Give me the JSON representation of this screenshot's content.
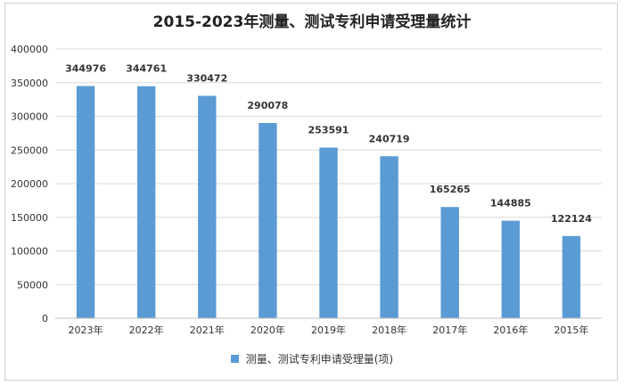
{
  "chart_data": {
    "type": "bar",
    "title": "2015-2023年测量、测试专利申请受理量统计",
    "categories": [
      "2023年",
      "2022年",
      "2021年",
      "2020年",
      "2019年",
      "2018年",
      "2017年",
      "2016年",
      "2015年"
    ],
    "series": [
      {
        "name": "测量、测试专利申请受理量(项)",
        "values": [
          344976,
          344761,
          330472,
          290078,
          253591,
          240719,
          165265,
          144885,
          122124
        ],
        "color": "#5b9bd5"
      }
    ],
    "ylim": [
      0,
      400000
    ],
    "yticks": [
      0,
      50000,
      100000,
      150000,
      200000,
      250000,
      300000,
      350000,
      400000
    ],
    "grid": true,
    "legend_position": "bottom"
  }
}
